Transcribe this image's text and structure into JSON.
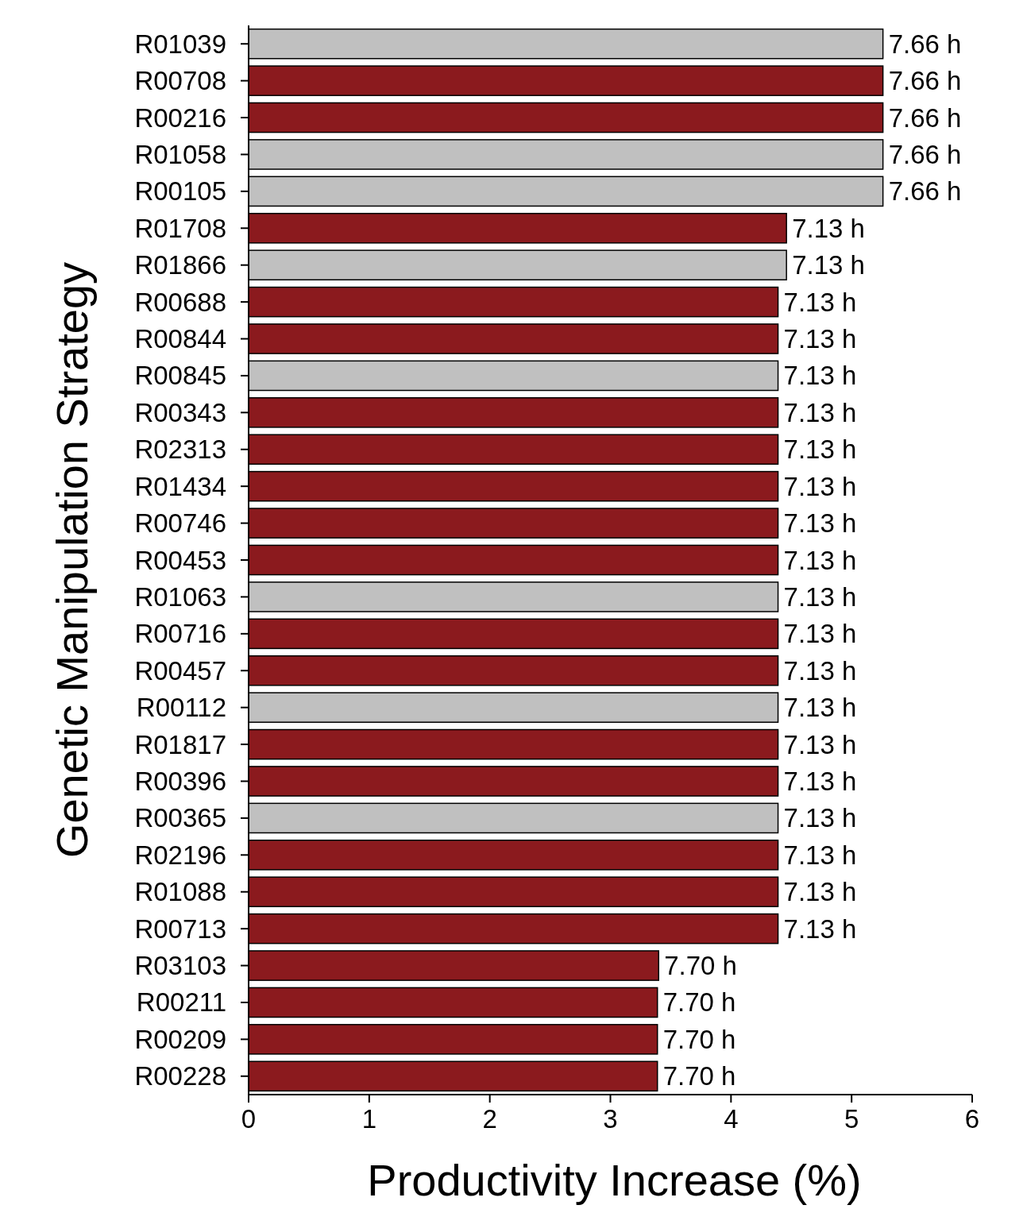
{
  "chart_data": {
    "type": "bar",
    "orientation": "horizontal",
    "xlabel": "Productivity Increase (%)",
    "ylabel": "Genetic Manipulation Strategy",
    "categories": [
      "R01039",
      "R00708",
      "R00216",
      "R01058",
      "R00105",
      "R01708",
      "R01866",
      "R00688",
      "R00844",
      "R00845",
      "R00343",
      "R02313",
      "R01434",
      "R00746",
      "R00453",
      "R01063",
      "R00716",
      "R00457",
      "R00112",
      "R01817",
      "R00396",
      "R00365",
      "R02196",
      "R01088",
      "R00713",
      "R03103",
      "R00211",
      "R00209",
      "R00228"
    ],
    "values": [
      5.26,
      5.26,
      5.26,
      5.26,
      5.26,
      4.46,
      4.46,
      4.39,
      4.39,
      4.39,
      4.39,
      4.39,
      4.39,
      4.39,
      4.39,
      4.39,
      4.39,
      4.39,
      4.39,
      4.39,
      4.39,
      4.39,
      4.39,
      4.39,
      4.39,
      3.4,
      3.39,
      3.39,
      3.39
    ],
    "colors": [
      "#c0c0c0",
      "#8b1a1e",
      "#8b1a1e",
      "#c0c0c0",
      "#c0c0c0",
      "#8b1a1e",
      "#c0c0c0",
      "#8b1a1e",
      "#8b1a1e",
      "#c0c0c0",
      "#8b1a1e",
      "#8b1a1e",
      "#8b1a1e",
      "#8b1a1e",
      "#8b1a1e",
      "#c0c0c0",
      "#8b1a1e",
      "#8b1a1e",
      "#c0c0c0",
      "#8b1a1e",
      "#8b1a1e",
      "#c0c0c0",
      "#8b1a1e",
      "#8b1a1e",
      "#8b1a1e",
      "#8b1a1e",
      "#8b1a1e",
      "#8b1a1e",
      "#8b1a1e"
    ],
    "annotations": [
      {
        "text": "7.66 h",
        "x": 5.26,
        "y": "R01039"
      },
      {
        "text": "7.66 h",
        "x": 5.26,
        "y": "R00708"
      },
      {
        "text": "7.66 h",
        "x": 5.26,
        "y": "R00216"
      },
      {
        "text": "7.66 h",
        "x": 5.26,
        "y": "R01058"
      },
      {
        "text": "7.66 h",
        "x": 5.26,
        "y": "R00105"
      },
      {
        "text": "7.13 h",
        "x": 4.46,
        "y": "R01708"
      },
      {
        "text": "7.13 h",
        "x": 4.46,
        "y": "R01866"
      },
      {
        "text": "7.13 h",
        "x": 4.39,
        "y": "R00688"
      },
      {
        "text": "7.13 h",
        "x": 4.39,
        "y": "R00844"
      },
      {
        "text": "7.13 h",
        "x": 4.39,
        "y": "R00845"
      },
      {
        "text": "7.13 h",
        "x": 4.39,
        "y": "R00343"
      },
      {
        "text": "7.13 h",
        "x": 4.39,
        "y": "R02313"
      },
      {
        "text": "7.13 h",
        "x": 4.39,
        "y": "R01434"
      },
      {
        "text": "7.13 h",
        "x": 4.39,
        "y": "R00746"
      },
      {
        "text": "7.13 h",
        "x": 4.39,
        "y": "R00453"
      },
      {
        "text": "7.13 h",
        "x": 4.39,
        "y": "R01063"
      },
      {
        "text": "7.13 h",
        "x": 4.39,
        "y": "R00716"
      },
      {
        "text": "7.13 h",
        "x": 4.39,
        "y": "R00457"
      },
      {
        "text": "7.13 h",
        "x": 4.39,
        "y": "R00112"
      },
      {
        "text": "7.13 h",
        "x": 4.39,
        "y": "R01817"
      },
      {
        "text": "7.13 h",
        "x": 4.39,
        "y": "R00396"
      },
      {
        "text": "7.13 h",
        "x": 4.39,
        "y": "R00365"
      },
      {
        "text": "7.13 h",
        "x": 4.39,
        "y": "R02196"
      },
      {
        "text": "7.13 h",
        "x": 4.39,
        "y": "R01088"
      },
      {
        "text": "7.13 h",
        "x": 4.39,
        "y": "R00713"
      },
      {
        "text": "7.70 h",
        "x": 3.4,
        "y": "R03103"
      },
      {
        "text": "7.70 h",
        "x": 3.39,
        "y": "R00211"
      },
      {
        "text": "7.70 h",
        "x": 3.39,
        "y": "R00209"
      },
      {
        "text": "7.70 h",
        "x": 3.39,
        "y": "R00228"
      }
    ],
    "xlim": [
      0,
      6
    ],
    "xticks": [
      0,
      1,
      2,
      3,
      4,
      5,
      6
    ]
  }
}
